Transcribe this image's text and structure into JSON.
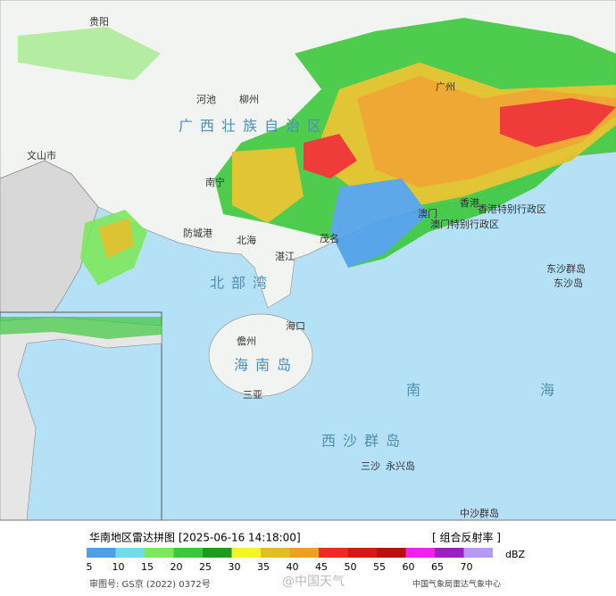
{
  "map_labels": [
    "贵阳",
    "河池",
    "柳州",
    "广西壮族自治区",
    "文山市",
    "南宁",
    "防城港",
    "北海",
    "湛江",
    "茂名",
    "广州",
    "香港",
    "澳门",
    "香港特别行政区",
    "澳门特别行政区",
    "北部湾",
    "海口",
    "儋州",
    "海南岛",
    "三亚",
    "东沙群岛",
    "东沙岛",
    "西沙群岛",
    "三沙",
    "永兴岛",
    "中沙群岛",
    "南",
    "海"
  ],
  "legend": {
    "title": "华南地区雷达拼图 [2025-06-16 14:18:00]",
    "product": "[ 组合反射率 ]",
    "unit": "dBZ",
    "ticks": [
      5,
      10,
      15,
      20,
      25,
      30,
      35,
      40,
      45,
      50,
      55,
      60,
      65,
      70
    ],
    "colors": [
      "#4f9fe8",
      "#6fdde8",
      "#7ee85c",
      "#3cc83c",
      "#1f9a1f",
      "#f5f522",
      "#e0c020",
      "#f0a020",
      "#f02828",
      "#d41818",
      "#b81010",
      "#f020f0",
      "#9a20c0",
      "#b49af0"
    ]
  },
  "footer": {
    "approval": "审图号: GS京 (2022) 0372号",
    "source": "中国气象局雷达气象中心",
    "watermark": "@中国天气"
  }
}
